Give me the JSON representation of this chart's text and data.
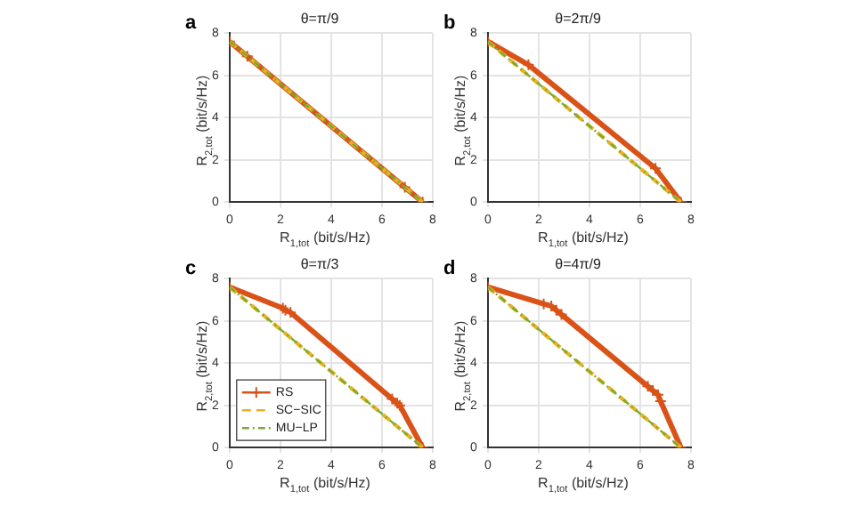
{
  "chart_data": [
    {
      "type": "line",
      "title": "θ=π/9",
      "xlabel": "R$_{1,tot}$ (bit/s/Hz)",
      "ylabel": "R$_{2,tot}$ (bit/s/Hz)",
      "annotations": [
        "a"
      ],
      "xlim": [
        0,
        8
      ],
      "ylim": [
        0,
        8
      ],
      "xticks": [
        0,
        2,
        4,
        6,
        8
      ],
      "yticks": [
        0,
        2,
        4,
        6,
        8
      ],
      "grid": true,
      "legend": false,
      "series": [
        {
          "color": "#d95319",
          "marker": "cross",
          "line_style": "solid",
          "x": [
            0,
            0.7,
            6.9,
            7.6
          ],
          "values": [
            7.6,
            6.9,
            0.7,
            0
          ]
        },
        {
          "color": "#edb120",
          "marker": "none",
          "line_style": "dashed",
          "x": [
            0,
            7.6
          ],
          "values": [
            7.6,
            0
          ]
        },
        {
          "color": "#77ac30",
          "marker": "none",
          "line_style": "dotted",
          "x": [
            0,
            7.6
          ],
          "values": [
            7.6,
            0
          ]
        }
      ]
    },
    {
      "type": "line",
      "title": "θ=2π/9",
      "xlabel": "R$_{1,tot}$ (bit/s/Hz)",
      "ylabel": "R$_{2,tot}$ (bit/s/Hz)",
      "annotations": [
        "b"
      ],
      "xlim": [
        0,
        8
      ],
      "ylim": [
        0,
        8
      ],
      "xticks": [
        0,
        2,
        4,
        6,
        8
      ],
      "yticks": [
        0,
        2,
        4,
        6,
        8
      ],
      "grid": true,
      "legend": false,
      "series": [
        {
          "color": "#d95319",
          "marker": "cross",
          "line_style": "solid",
          "x": [
            0,
            1.6,
            6.6,
            7.6
          ],
          "values": [
            7.6,
            6.5,
            1.6,
            0
          ]
        },
        {
          "color": "#edb120",
          "marker": "none",
          "line_style": "dashed",
          "x": [
            0,
            7.6
          ],
          "values": [
            7.6,
            0
          ]
        },
        {
          "color": "#77ac30",
          "marker": "none",
          "line_style": "dotted",
          "x": [
            0,
            7.6
          ],
          "values": [
            7.6,
            0
          ]
        }
      ]
    },
    {
      "type": "line",
      "title": "θ=π/3",
      "xlabel": "R$_{1,tot}$ (bit/s/Hz)",
      "ylabel": "R$_{2,tot}$ (bit/s/Hz)",
      "annotations": [
        "c"
      ],
      "xlim": [
        0,
        8
      ],
      "ylim": [
        0,
        8
      ],
      "xticks": [
        0,
        2,
        4,
        6,
        8
      ],
      "yticks": [
        0,
        2,
        4,
        6,
        8
      ],
      "grid": true,
      "legend": "bottom left",
      "series": [
        {
          "name": "RS",
          "color": "#d95319",
          "marker": "cross",
          "line_style": "solid",
          "x": [
            0,
            2.1,
            2.2,
            2.4,
            6.4,
            6.6,
            6.7,
            7.6
          ],
          "values": [
            7.6,
            6.6,
            6.5,
            6.4,
            2.3,
            2.1,
            2.0,
            0
          ]
        },
        {
          "name": "SC−SIC",
          "color": "#edb120",
          "marker": "none",
          "line_style": "dashed",
          "x": [
            0,
            7.6
          ],
          "values": [
            7.6,
            0
          ]
        },
        {
          "name": "MU−LP",
          "color": "#77ac30",
          "marker": "none",
          "line_style": "dotted",
          "x": [
            0,
            7.6
          ],
          "values": [
            7.6,
            0
          ]
        }
      ]
    },
    {
      "type": "line",
      "title": "θ=4π/9",
      "xlabel": "R$_{1,tot}$ (bit/s/Hz)",
      "ylabel": "R$_{2,tot}$ (bit/s/Hz)",
      "annotations": [
        "d"
      ],
      "xlim": [
        0,
        8
      ],
      "ylim": [
        0,
        8
      ],
      "xticks": [
        0,
        2,
        4,
        6,
        8
      ],
      "yticks": [
        0,
        2,
        4,
        6,
        8
      ],
      "grid": true,
      "legend": false,
      "series": [
        {
          "color": "#d95319",
          "marker": "cross",
          "line_style": "solid",
          "x": [
            0,
            2.2,
            2.5,
            2.7,
            2.9,
            6.3,
            6.5,
            6.7,
            6.8,
            7.6
          ],
          "values": [
            7.6,
            6.8,
            6.7,
            6.5,
            6.3,
            2.9,
            2.7,
            2.5,
            2.2,
            0
          ]
        },
        {
          "color": "#edb120",
          "marker": "none",
          "line_style": "dashed",
          "x": [
            0,
            7.6
          ],
          "values": [
            7.6,
            0
          ]
        },
        {
          "color": "#77ac30",
          "marker": "none",
          "line_style": "dotted",
          "x": [
            0,
            7.6
          ],
          "values": [
            7.6,
            0
          ]
        }
      ]
    }
  ]
}
